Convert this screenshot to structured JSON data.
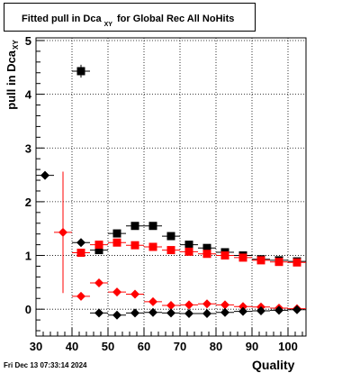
{
  "title": {
    "main": "Fitted pull in Dca",
    "subscript": "XY",
    "rest": "for Global Rec All NoHits"
  },
  "ylabel": {
    "main": "pull in Dca",
    "subscript": "XY"
  },
  "xlabel": "Quality",
  "timestamp": "Fri Dec 13 07:33:14 2024",
  "chart_data": {
    "type": "scatter",
    "xlim": [
      30,
      105
    ],
    "ylim": [
      -0.5,
      5.05
    ],
    "xticks": [
      30,
      40,
      50,
      60,
      70,
      80,
      90,
      100
    ],
    "yticks": [
      0,
      1,
      2,
      3,
      4,
      5
    ],
    "grid": true,
    "series": [
      {
        "marker": "square",
        "color": "#000000",
        "points": [
          {
            "x": 42.5,
            "y": 4.43,
            "xerr": 2.5,
            "yerr": 0.12
          },
          {
            "x": 47.5,
            "y": 1.1,
            "xerr": 2.5,
            "yerr": 0.02
          },
          {
            "x": 52.5,
            "y": 1.41,
            "xerr": 2.5,
            "yerr": 0.02
          },
          {
            "x": 57.5,
            "y": 1.55,
            "xerr": 2.5,
            "yerr": 0.02
          },
          {
            "x": 62.5,
            "y": 1.55,
            "xerr": 2.5,
            "yerr": 0.02
          },
          {
            "x": 67.5,
            "y": 1.36,
            "xerr": 2.5,
            "yerr": 0.02
          },
          {
            "x": 72.5,
            "y": 1.2,
            "xerr": 2.5,
            "yerr": 0.02
          },
          {
            "x": 77.5,
            "y": 1.14,
            "xerr": 2.5,
            "yerr": 0.02
          },
          {
            "x": 82.5,
            "y": 1.06,
            "xerr": 2.5,
            "yerr": 0.02
          },
          {
            "x": 87.5,
            "y": 1.0,
            "xerr": 2.5,
            "yerr": 0.02
          },
          {
            "x": 92.5,
            "y": 0.93,
            "xerr": 2.5,
            "yerr": 0.02
          },
          {
            "x": 97.5,
            "y": 0.91,
            "xerr": 2.5,
            "yerr": 0.02
          },
          {
            "x": 102.5,
            "y": 0.89,
            "xerr": 2.5,
            "yerr": 0.02
          }
        ]
      },
      {
        "marker": "square",
        "color": "#ff0000",
        "points": [
          {
            "x": 42.5,
            "y": 1.05,
            "xerr": 2.5,
            "yerr": 0.02
          },
          {
            "x": 47.5,
            "y": 1.2,
            "xerr": 2.5,
            "yerr": 0.02
          },
          {
            "x": 52.5,
            "y": 1.24,
            "xerr": 2.5,
            "yerr": 0.02
          },
          {
            "x": 57.5,
            "y": 1.19,
            "xerr": 2.5,
            "yerr": 0.02
          },
          {
            "x": 62.5,
            "y": 1.16,
            "xerr": 2.5,
            "yerr": 0.02
          },
          {
            "x": 67.5,
            "y": 1.1,
            "xerr": 2.5,
            "yerr": 0.02
          },
          {
            "x": 72.5,
            "y": 1.07,
            "xerr": 2.5,
            "yerr": 0.02
          },
          {
            "x": 77.5,
            "y": 1.03,
            "xerr": 2.5,
            "yerr": 0.02
          },
          {
            "x": 82.5,
            "y": 1.0,
            "xerr": 2.5,
            "yerr": 0.02
          },
          {
            "x": 87.5,
            "y": 0.96,
            "xerr": 2.5,
            "yerr": 0.02
          },
          {
            "x": 92.5,
            "y": 0.91,
            "xerr": 2.5,
            "yerr": 0.02
          },
          {
            "x": 97.5,
            "y": 0.88,
            "xerr": 2.5,
            "yerr": 0.02
          },
          {
            "x": 102.5,
            "y": 0.87,
            "xerr": 2.5,
            "yerr": 0.02
          }
        ]
      },
      {
        "marker": "diamond",
        "color": "#ff0000",
        "points": [
          {
            "x": 37.5,
            "y": 1.43,
            "xerr": 2.5,
            "yerr": 1.13
          },
          {
            "x": 42.5,
            "y": 0.24,
            "xerr": 2.5,
            "yerr": 0.03
          },
          {
            "x": 47.5,
            "y": 0.49,
            "xerr": 2.5,
            "yerr": 0.02
          },
          {
            "x": 52.5,
            "y": 0.32,
            "xerr": 2.5,
            "yerr": 0.02
          },
          {
            "x": 57.5,
            "y": 0.28,
            "xerr": 2.5,
            "yerr": 0.02
          },
          {
            "x": 62.5,
            "y": 0.14,
            "xerr": 2.5,
            "yerr": 0.02
          },
          {
            "x": 67.5,
            "y": 0.07,
            "xerr": 2.5,
            "yerr": 0.02
          },
          {
            "x": 72.5,
            "y": 0.08,
            "xerr": 2.5,
            "yerr": 0.02
          },
          {
            "x": 77.5,
            "y": 0.1,
            "xerr": 2.5,
            "yerr": 0.02
          },
          {
            "x": 82.5,
            "y": 0.08,
            "xerr": 2.5,
            "yerr": 0.02
          },
          {
            "x": 87.5,
            "y": 0.05,
            "xerr": 2.5,
            "yerr": 0.02
          },
          {
            "x": 92.5,
            "y": 0.04,
            "xerr": 2.5,
            "yerr": 0.02
          },
          {
            "x": 97.5,
            "y": 0.02,
            "xerr": 2.5,
            "yerr": 0.02
          },
          {
            "x": 102.5,
            "y": 0.01,
            "xerr": 2.5,
            "yerr": 0.02
          }
        ]
      },
      {
        "marker": "diamond",
        "color": "#000000",
        "points": [
          {
            "x": 32.5,
            "y": 2.49,
            "xerr": 2.5,
            "yerr": 0.02
          },
          {
            "x": 42.5,
            "y": 1.24,
            "xerr": 2.5,
            "yerr": 0.02
          },
          {
            "x": 47.5,
            "y": -0.07,
            "xerr": 2.5,
            "yerr": 0.02
          },
          {
            "x": 52.5,
            "y": -0.11,
            "xerr": 2.5,
            "yerr": 0.02
          },
          {
            "x": 57.5,
            "y": -0.07,
            "xerr": 2.5,
            "yerr": 0.02
          },
          {
            "x": 62.5,
            "y": -0.06,
            "xerr": 2.5,
            "yerr": 0.02
          },
          {
            "x": 67.5,
            "y": -0.07,
            "xerr": 2.5,
            "yerr": 0.02
          },
          {
            "x": 72.5,
            "y": -0.08,
            "xerr": 2.5,
            "yerr": 0.02
          },
          {
            "x": 77.5,
            "y": -0.08,
            "xerr": 2.5,
            "yerr": 0.02
          },
          {
            "x": 82.5,
            "y": -0.06,
            "xerr": 2.5,
            "yerr": 0.02
          },
          {
            "x": 87.5,
            "y": -0.04,
            "xerr": 2.5,
            "yerr": 0.02
          },
          {
            "x": 92.5,
            "y": -0.03,
            "xerr": 2.5,
            "yerr": 0.02
          },
          {
            "x": 97.5,
            "y": -0.02,
            "xerr": 2.5,
            "yerr": 0.02
          },
          {
            "x": 102.5,
            "y": -0.01,
            "xerr": 2.5,
            "yerr": 0.02
          }
        ]
      }
    ]
  }
}
